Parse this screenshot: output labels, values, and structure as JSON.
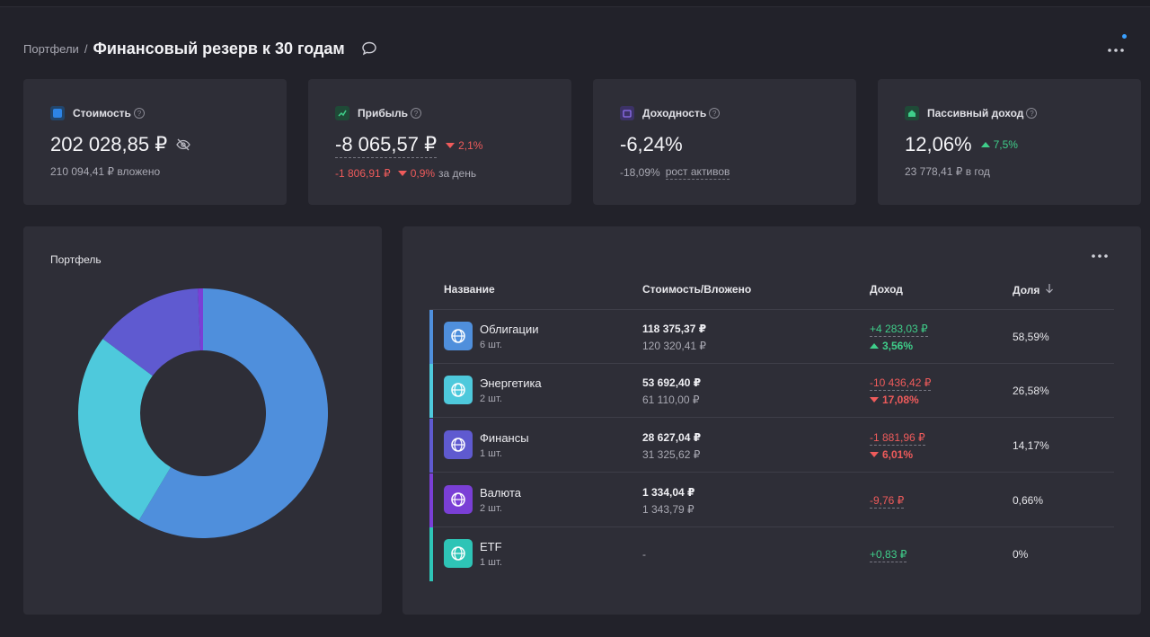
{
  "breadcrumb": {
    "parent": "Портфели",
    "separator": "/"
  },
  "page_title": "Финансовый резерв к 30 годам",
  "icons": {
    "comment": "chat-bubble-icon",
    "more": "more-horizontal-icon",
    "eye_off": "eye-off-icon",
    "help": "question-circle-icon"
  },
  "stats": [
    {
      "label": "Стоимость",
      "value": "202 028,85 ₽",
      "sub": "210 094,41 ₽ вложено",
      "icon_color": "#2d84e6",
      "icon_bg": "#22456b"
    },
    {
      "label": "Прибыль",
      "value": "-8 065,57 ₽",
      "delta": "2,1%",
      "sub_value": "-1 806,91 ₽",
      "sub_pct": "0,9%",
      "sub_suffix": "за день",
      "icon_color": "#3fce8a",
      "icon_bg": "#1f4a37"
    },
    {
      "label": "Доходность",
      "value": "-6,24%",
      "sub_value": "-18,09%",
      "sub_link": "рост активов",
      "icon_color": "#8f6ff0",
      "icon_bg": "#3c3266"
    },
    {
      "label": "Пассивный доход",
      "value": "12,06%",
      "delta": "7,5%",
      "sub": "23 778,41 ₽ в год",
      "icon_color": "#3fce8a",
      "icon_bg": "#1f4a37"
    }
  ],
  "portfolio": {
    "title": "Портфель"
  },
  "chart_data": {
    "type": "pie",
    "categories": [
      "Облигации",
      "Энергетика",
      "Финансы",
      "Валюта",
      "ETF"
    ],
    "values": [
      58.59,
      26.58,
      14.17,
      0.66,
      0
    ],
    "colors": [
      "#4f8fdc",
      "#4ec9dc",
      "#5f5ad0",
      "#7a3fd6",
      "#2ec4b6"
    ]
  },
  "table": {
    "headers": {
      "name": "Название",
      "value": "Стоимость/Вложено",
      "income": "Доход",
      "share": "Доля"
    },
    "rows": [
      {
        "name": "Облигации",
        "count": "6 шт.",
        "value": "118 375,37 ₽",
        "invested": "120 320,41 ₽",
        "income": "+4 283,03 ₽",
        "income_pct": "3,56%",
        "direction": "up",
        "share": "58,59%",
        "color": "#4f8fdc"
      },
      {
        "name": "Энергетика",
        "count": "2 шт.",
        "value": "53 692,40 ₽",
        "invested": "61 110,00 ₽",
        "income": "-10 436,42 ₽",
        "income_pct": "17,08%",
        "direction": "down",
        "share": "26,58%",
        "color": "#4ec9dc"
      },
      {
        "name": "Финансы",
        "count": "1 шт.",
        "value": "28 627,04 ₽",
        "invested": "31 325,62 ₽",
        "income": "-1 881,96 ₽",
        "income_pct": "6,01%",
        "direction": "down",
        "share": "14,17%",
        "color": "#5f5ad0"
      },
      {
        "name": "Валюта",
        "count": "2 шт.",
        "value": "1 334,04 ₽",
        "invested": "1 343,79 ₽",
        "income": "-9,76 ₽",
        "income_pct": "",
        "direction": "down",
        "share": "0,66%",
        "color": "#7a3fd6"
      },
      {
        "name": "ETF",
        "count": "1 шт.",
        "value": "-",
        "invested": "",
        "income": "+0,83 ₽",
        "income_pct": "",
        "direction": "up",
        "share": "0%",
        "color": "#2ec4b6"
      }
    ]
  }
}
